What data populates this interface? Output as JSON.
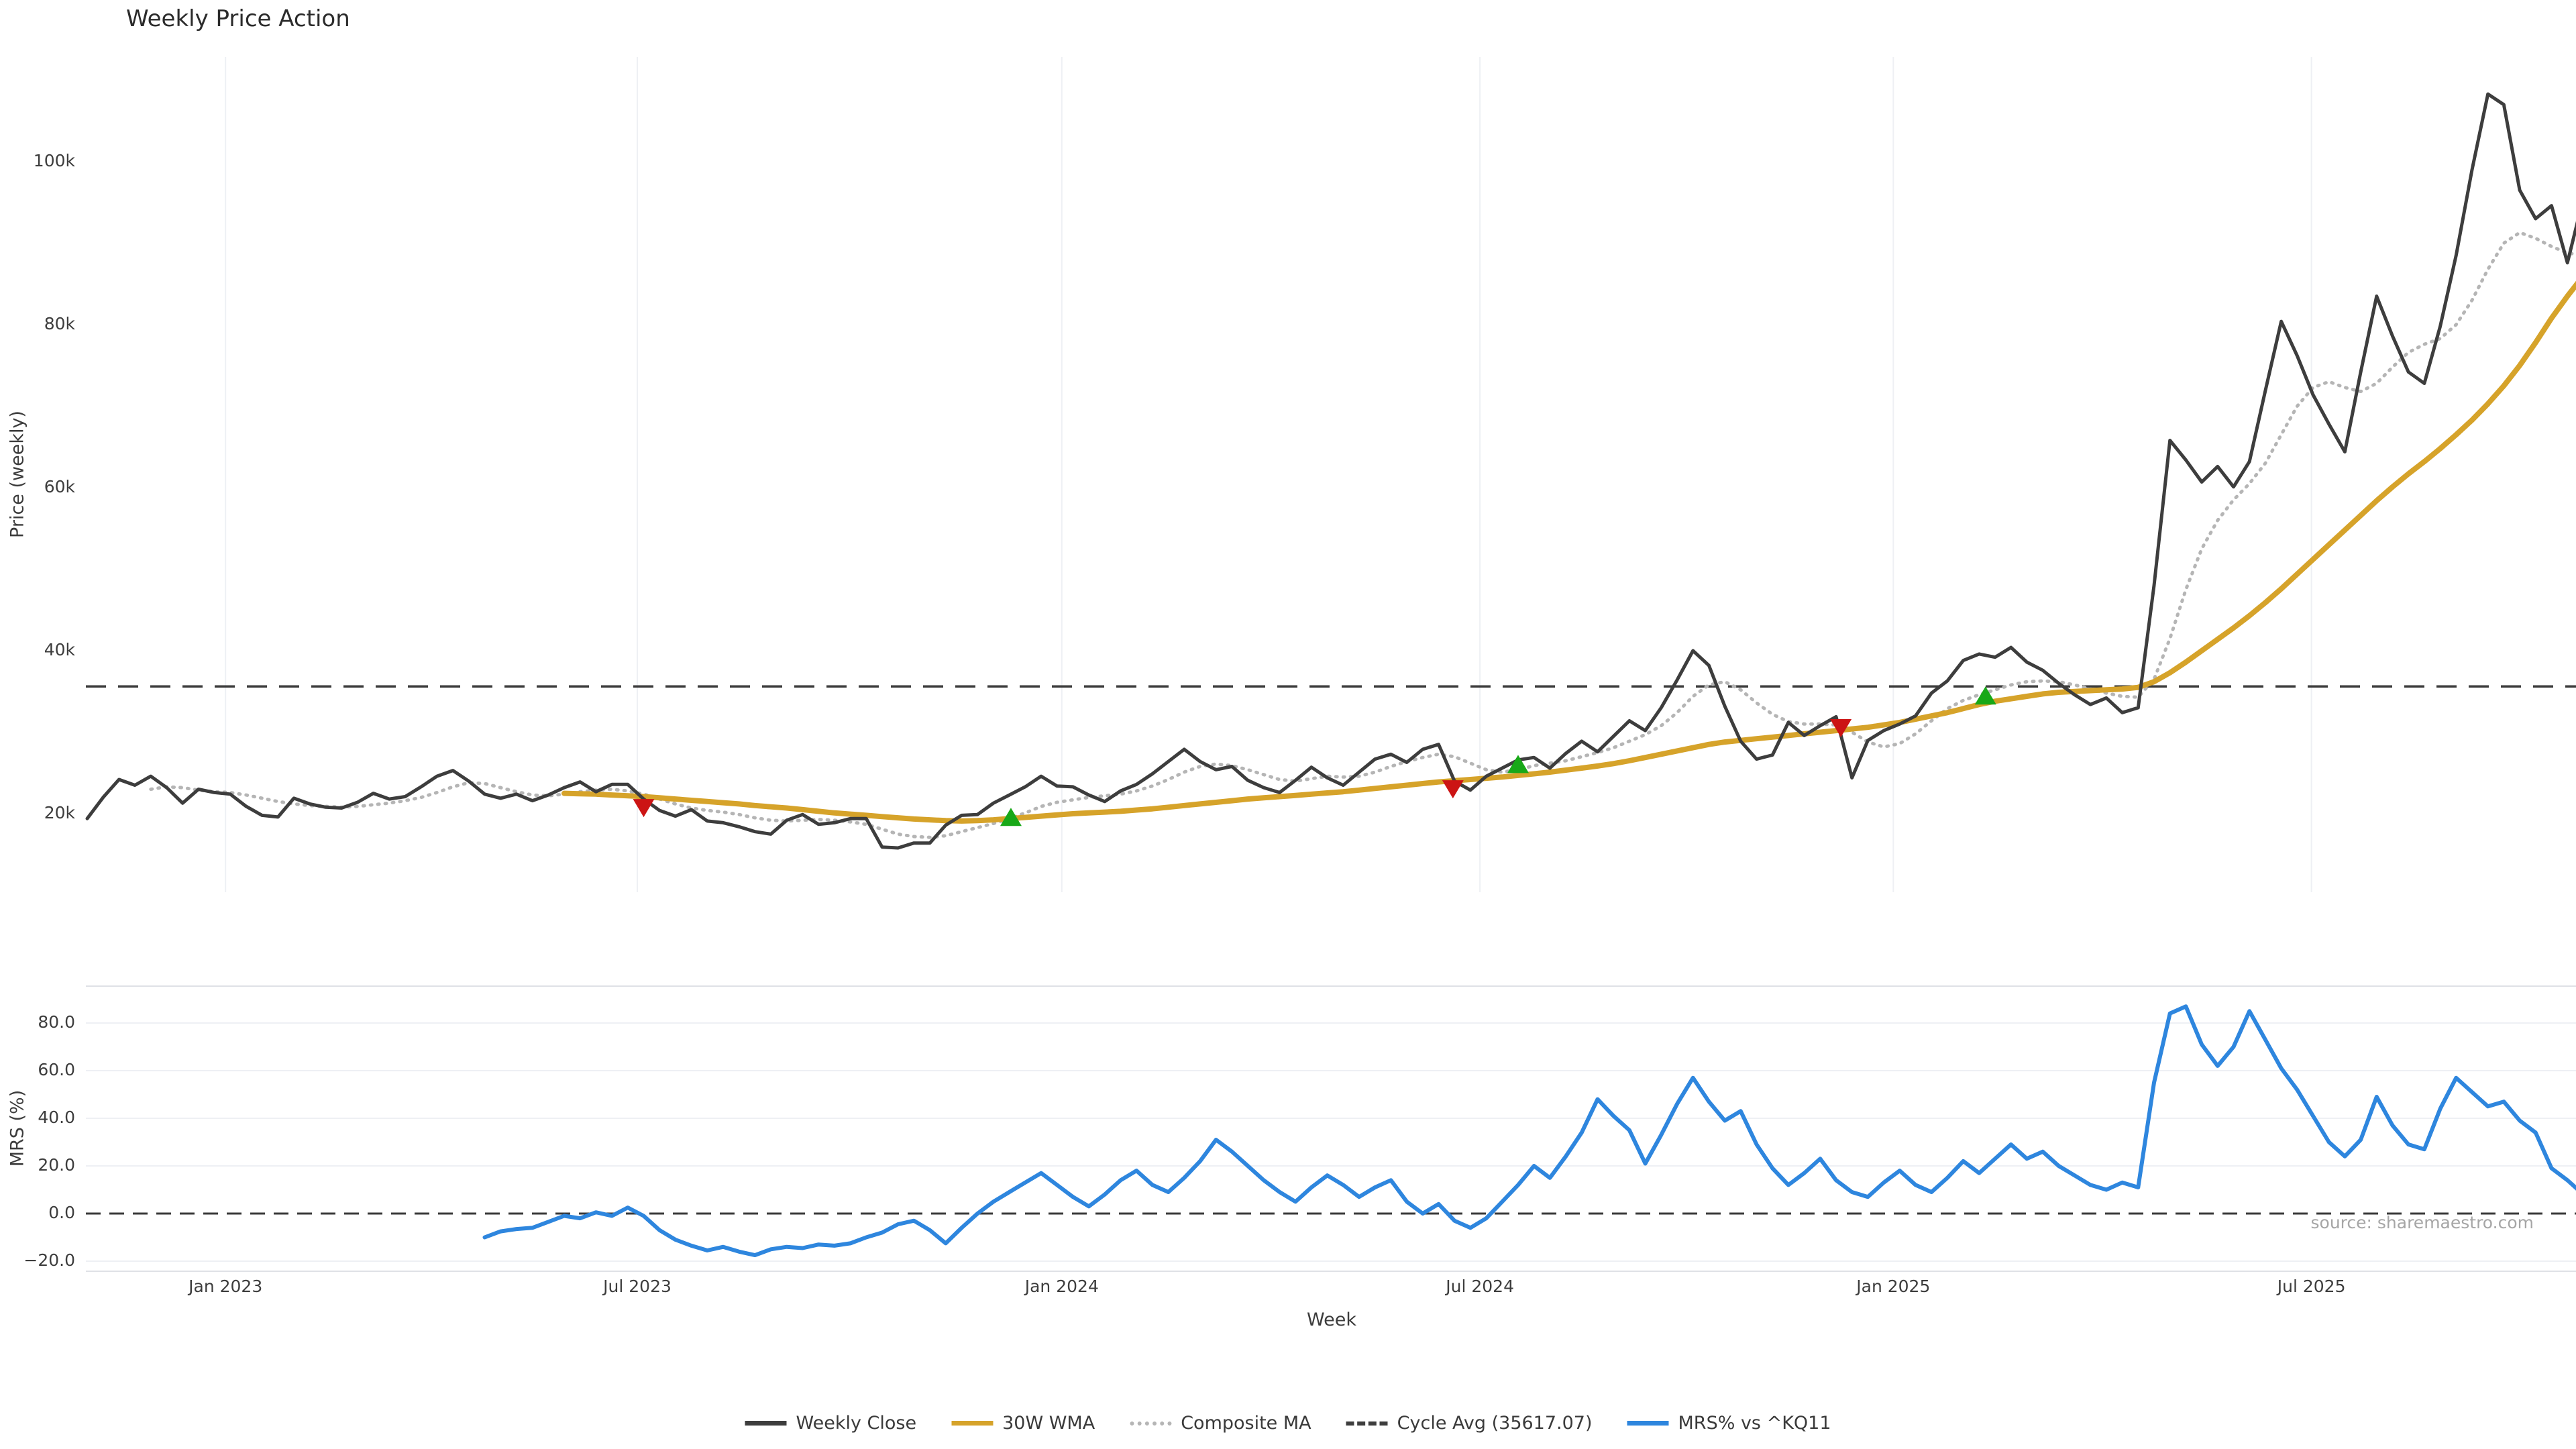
{
  "ui": {
    "title": "Weekly Price Action",
    "xlabel": "Week",
    "price_ylabel": "Price (weekly)",
    "mrs_ylabel": "MRS (%)",
    "source": "source: sharemaestro.com",
    "legend": [
      {
        "label": "Weekly Close",
        "color": "#3d3d3d",
        "style": "solid"
      },
      {
        "label": "30W WMA",
        "color": "#d6a32a",
        "style": "solid"
      },
      {
        "label": "Composite MA",
        "color": "#b5b5b5",
        "style": "dotted"
      },
      {
        "label": "Cycle Avg (35617.07)",
        "color": "#3d3d3d",
        "style": "dashed"
      },
      {
        "label": "MRS% vs ^KQ11",
        "color": "#2e86de",
        "style": "solid"
      }
    ]
  },
  "colors": {
    "close": "#3d3d3d",
    "wma": "#d6a32a",
    "composite": "#b5b5b5",
    "cycle": "#3a3a3a",
    "mrs": "#2e86de",
    "buy": "#18a818",
    "sell": "#cc1414",
    "grid": "#eef0f4",
    "spine": "#dfe1e6",
    "text": "#3d3d3d",
    "source_text": "#a6a6a6"
  },
  "chart_data": [
    {
      "type": "line",
      "title": "Weekly Price Action",
      "ylabel": "Price (weekly)",
      "xlabel": "Week",
      "ylim_k": [
        10.5,
        112.9
      ],
      "grid": "vertical-only",
      "y_ticks": [
        {
          "label": "20k",
          "value": 20000
        },
        {
          "label": "40k",
          "value": 40000
        },
        {
          "label": "60k",
          "value": 60000
        },
        {
          "label": "80k",
          "value": 80000
        },
        {
          "label": "100k",
          "value": 100000
        }
      ],
      "x_ticks": [
        {
          "label": "Jan 2023",
          "week": 8.7
        },
        {
          "label": "Jul 2023",
          "week": 34.6
        },
        {
          "label": "Jan 2024",
          "week": 61.3
        },
        {
          "label": "Jul 2024",
          "week": 87.6
        },
        {
          "label": "Jan 2025",
          "week": 113.6
        },
        {
          "label": "Jul 2025",
          "week": 139.9
        }
      ],
      "cycle_avg": 35617.07,
      "series": [
        {
          "name": "Weekly Close",
          "start_week": 0,
          "values_k": [
            19.4,
            22.0,
            24.2,
            23.5,
            24.6,
            23.2,
            21.3,
            23.0,
            22.6,
            22.4,
            20.9,
            19.8,
            19.6,
            21.9,
            21.2,
            20.8,
            20.7,
            21.4,
            22.5,
            21.8,
            22.1,
            23.3,
            24.6,
            25.3,
            24.0,
            22.4,
            21.9,
            22.4,
            21.6,
            22.3,
            23.2,
            23.9,
            22.7,
            23.6,
            23.6,
            21.8,
            20.4,
            19.7,
            20.5,
            19.1,
            18.9,
            18.4,
            17.8,
            17.5,
            19.2,
            19.9,
            18.7,
            18.9,
            19.4,
            19.4,
            15.9,
            15.8,
            16.4,
            16.4,
            18.6,
            19.8,
            19.9,
            21.3,
            22.3,
            23.3,
            24.6,
            23.4,
            23.3,
            22.3,
            21.5,
            22.8,
            23.6,
            24.9,
            26.4,
            27.9,
            26.4,
            25.4,
            25.8,
            24.1,
            23.2,
            22.6,
            24.1,
            25.7,
            24.4,
            23.5,
            25.1,
            26.7,
            27.3,
            26.3,
            27.9,
            28.5,
            24.0,
            22.9,
            24.6,
            25.6,
            26.6,
            26.9,
            25.6,
            27.4,
            28.9,
            27.6,
            29.5,
            31.4,
            30.2,
            33.0,
            36.4,
            40.0,
            38.2,
            33.2,
            28.9,
            26.7,
            27.2,
            31.2,
            29.6,
            30.8,
            31.9,
            24.4,
            29.0,
            30.2,
            31.0,
            32.0,
            34.8,
            36.3,
            38.8,
            39.6,
            39.2,
            40.4,
            38.6,
            37.6,
            36.0,
            34.6,
            33.4,
            34.2,
            32.4,
            33.0,
            48.0,
            65.8,
            63.4,
            60.7,
            62.6,
            60.1,
            63.2,
            71.9,
            80.4,
            76.2,
            71.4,
            67.8,
            64.4,
            74.2,
            83.5,
            78.6,
            74.2,
            72.8,
            79.8,
            88.5,
            99.0,
            108.3,
            107.0,
            96.5,
            93.0,
            94.6,
            87.6,
            95.5
          ]
        },
        {
          "name": "30W WMA",
          "start_week": 30,
          "values_k": [
            22.5,
            22.45,
            22.4,
            22.3,
            22.2,
            22.1,
            21.95,
            21.8,
            21.65,
            21.5,
            21.35,
            21.2,
            21.0,
            20.85,
            20.7,
            20.5,
            20.3,
            20.1,
            19.95,
            19.8,
            19.65,
            19.5,
            19.35,
            19.25,
            19.15,
            19.1,
            19.15,
            19.25,
            19.4,
            19.55,
            19.7,
            19.85,
            20.0,
            20.1,
            20.2,
            20.3,
            20.45,
            20.6,
            20.8,
            21.0,
            21.2,
            21.4,
            21.6,
            21.8,
            21.95,
            22.1,
            22.25,
            22.4,
            22.55,
            22.7,
            22.9,
            23.1,
            23.3,
            23.5,
            23.7,
            23.9,
            24.05,
            24.2,
            24.35,
            24.5,
            24.7,
            24.9,
            25.1,
            25.35,
            25.6,
            25.85,
            26.15,
            26.5,
            26.9,
            27.3,
            27.7,
            28.1,
            28.5,
            28.8,
            29.0,
            29.2,
            29.4,
            29.6,
            29.8,
            30.0,
            30.2,
            30.4,
            30.6,
            30.9,
            31.2,
            31.6,
            32.0,
            32.4,
            32.9,
            33.4,
            33.8,
            34.1,
            34.4,
            34.7,
            34.9,
            35.0,
            35.1,
            35.2,
            35.3,
            35.5,
            36.2,
            37.3,
            38.6,
            40.0,
            41.4,
            42.8,
            44.3,
            45.9,
            47.6,
            49.4,
            51.2,
            53.0,
            54.8,
            56.6,
            58.4,
            60.1,
            61.7,
            63.2,
            64.8,
            66.5,
            68.3,
            70.3,
            72.5,
            75.0,
            77.8,
            80.8,
            83.5,
            86.0
          ]
        },
        {
          "name": "Composite MA",
          "start_week": 4,
          "values_k": [
            23.0,
            23.3,
            23.2,
            22.9,
            22.7,
            22.6,
            22.3,
            21.9,
            21.5,
            21.2,
            21.0,
            20.9,
            20.8,
            20.9,
            21.1,
            21.3,
            21.6,
            22.0,
            22.6,
            23.3,
            23.8,
            23.7,
            23.2,
            22.7,
            22.3,
            22.2,
            22.4,
            22.7,
            22.9,
            23.0,
            22.8,
            22.4,
            21.8,
            21.2,
            20.7,
            20.4,
            20.2,
            19.9,
            19.5,
            19.2,
            19.1,
            19.2,
            19.3,
            19.2,
            19.0,
            18.7,
            18.1,
            17.5,
            17.2,
            17.1,
            17.3,
            17.8,
            18.3,
            18.8,
            19.4,
            20.1,
            20.9,
            21.4,
            21.7,
            22.0,
            22.2,
            22.4,
            22.8,
            23.4,
            24.2,
            25.1,
            25.8,
            26.1,
            25.9,
            25.4,
            24.8,
            24.2,
            24.0,
            24.3,
            24.6,
            24.5,
            24.6,
            25.1,
            25.8,
            26.4,
            26.9,
            27.3,
            27.0,
            26.2,
            25.4,
            25.1,
            25.4,
            25.9,
            26.2,
            26.5,
            27.0,
            27.5,
            28.1,
            28.9,
            29.7,
            30.8,
            32.4,
            34.4,
            35.8,
            36.2,
            35.2,
            33.6,
            32.2,
            31.3,
            31.0,
            31.0,
            30.9,
            30.0,
            28.8,
            28.2,
            28.6,
            29.8,
            31.4,
            32.9,
            33.9,
            34.6,
            35.2,
            35.8,
            36.2,
            36.3,
            36.2,
            35.8,
            35.3,
            34.8,
            34.4,
            34.3,
            36.5,
            41.5,
            47.5,
            52.5,
            56.0,
            58.5,
            60.5,
            63.0,
            66.5,
            70.0,
            72.3,
            73.0,
            72.3,
            71.8,
            72.8,
            74.8,
            76.6,
            77.6,
            78.3,
            80.0,
            83.0,
            86.8,
            90.0,
            91.3,
            90.6,
            89.6,
            88.8,
            88.5
          ]
        }
      ],
      "markers": {
        "buy": [
          {
            "week": 58.1,
            "value_k": 19.4
          },
          {
            "week": 90.0,
            "value_k": 25.9
          },
          {
            "week": 119.4,
            "value_k": 34.3
          }
        ],
        "sell": [
          {
            "week": 35.0,
            "value_k": 20.9
          },
          {
            "week": 85.9,
            "value_k": 23.2
          },
          {
            "week": 110.3,
            "value_k": 30.7
          }
        ]
      }
    },
    {
      "type": "line",
      "ylabel": "MRS (%)",
      "ylim": [
        -28,
        96
      ],
      "grid": "horizontal-only",
      "zero_line": {
        "style": "dashed",
        "value": 0.0
      },
      "y_ticks": [
        {
          "label": "−20.0",
          "value": -20
        },
        {
          "label": "0.0",
          "value": 0
        },
        {
          "label": "20.0",
          "value": 20
        },
        {
          "label": "40.0",
          "value": 40
        },
        {
          "label": "60.0",
          "value": 60
        },
        {
          "label": "80.0",
          "value": 80
        }
      ],
      "series": [
        {
          "name": "MRS% vs ^KQ11",
          "start_week": 25,
          "values": [
            -10,
            -7.5,
            -6.5,
            -6,
            -3.5,
            -1,
            -2,
            0.5,
            -1,
            2.5,
            -1,
            -7,
            -11,
            -13.5,
            -15.5,
            -14,
            -16,
            -17.5,
            -15,
            -14,
            -14.5,
            -13,
            -13.5,
            -12.5,
            -10,
            -8,
            -4.5,
            -3,
            -7,
            -12.5,
            -6,
            0,
            5,
            9,
            13,
            17,
            12,
            7,
            3,
            8,
            14,
            18,
            12,
            9,
            15,
            22,
            31,
            26,
            20,
            14,
            9,
            5,
            11,
            16,
            12,
            7,
            11,
            14,
            5,
            0,
            4,
            -3,
            -6,
            -2,
            5,
            12,
            20,
            15,
            24,
            34,
            48,
            41,
            35,
            21,
            33,
            46,
            57,
            47,
            39,
            43,
            29,
            19,
            12,
            17,
            23,
            14,
            9,
            7,
            13,
            18,
            12,
            9,
            15,
            22,
            17,
            23,
            29,
            23,
            26,
            20,
            16,
            12,
            10,
            13,
            11,
            55,
            84,
            87,
            71,
            62,
            70,
            85,
            73,
            61,
            52,
            41,
            30,
            24,
            31,
            49,
            37,
            29,
            27,
            44,
            57,
            51,
            45,
            47,
            39,
            34,
            19,
            14,
            8
          ]
        }
      ]
    }
  ]
}
